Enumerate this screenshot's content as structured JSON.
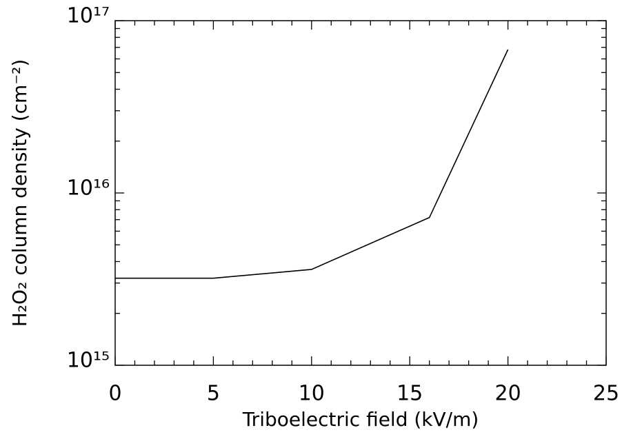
{
  "chart_data": {
    "type": "line",
    "x_label": "Triboelectric field (kV/m)",
    "y_label": "H₂O₂ column density (cm⁻²)",
    "x": [
      0,
      5,
      10,
      16,
      20
    ],
    "series": [
      {
        "color": "#000000",
        "values": [
          3200000000000000.0,
          3200000000000000.0,
          3600000000000000.0,
          7200000000000000.0,
          6.8e+16
        ]
      }
    ],
    "xlim": [
      0,
      25
    ],
    "xticks": [
      0,
      5,
      10,
      15,
      20,
      25
    ],
    "xminorticks": [
      1,
      2,
      3,
      4,
      6,
      7,
      8,
      9,
      11,
      12,
      13,
      14,
      16,
      17,
      18,
      19,
      21,
      22,
      23,
      24
    ],
    "ylim": [
      1000000000000000.0,
      1e+17
    ],
    "ylog": true,
    "yticks": [
      {
        "value": 1000000000000000.0,
        "label": "10¹⁵"
      },
      {
        "value": 1e+16,
        "label": "10¹⁶"
      },
      {
        "value": 1e+17,
        "label": "10¹⁷"
      }
    ],
    "yminorticks": [
      2000000000000000.0,
      3000000000000000.0,
      4000000000000000.0,
      5000000000000000.0,
      6000000000000000.0,
      7000000000000000.0,
      8000000000000000.0,
      9000000000000000.0,
      2e+16,
      3e+16,
      4e+16,
      5e+16,
      6e+16,
      7e+16,
      8e+16,
      9e+16
    ]
  }
}
